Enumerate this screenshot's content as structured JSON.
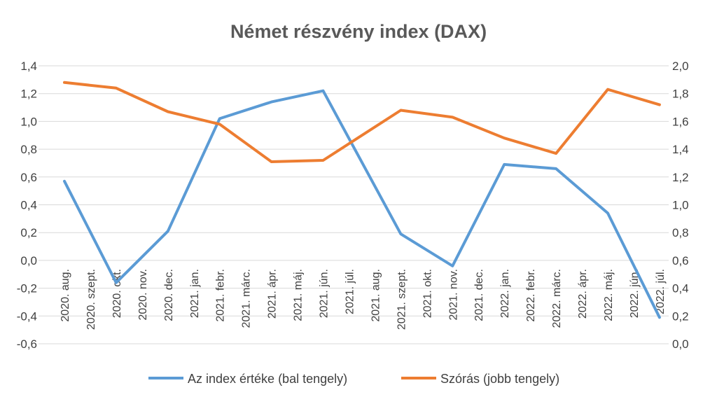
{
  "chart_data": {
    "type": "line",
    "title": "Német részvény index (DAX)",
    "categories": [
      "2020. aug.",
      "2020. szept.",
      "2020. okt.",
      "2020. nov.",
      "2020. dec.",
      "2021. jan.",
      "2021. febr.",
      "2021. márc.",
      "2021. ápr.",
      "2021. máj.",
      "2021. jún.",
      "2021. júl.",
      "2021. aug.",
      "2021. szept.",
      "2021. okt.",
      "2021. nov.",
      "2021. dec.",
      "2022. jan.",
      "2022. febr.",
      "2022. márc.",
      "2022. ápr.",
      "2022. máj.",
      "2022. jún.",
      "2022. júl."
    ],
    "y_left": {
      "min": -0.6,
      "max": 1.4,
      "step": 0.2,
      "ticks": [
        "1,4",
        "1,2",
        "1,0",
        "0,8",
        "0,6",
        "0,4",
        "0,2",
        "0,0",
        "-0,2",
        "-0,4",
        "-0,6"
      ]
    },
    "y_right": {
      "min": 0.0,
      "max": 2.0,
      "step": 0.2,
      "ticks": [
        "2,0",
        "1,8",
        "1,6",
        "1,4",
        "1,2",
        "1,0",
        "0,8",
        "0,6",
        "0,4",
        "0,2",
        "0,0"
      ]
    },
    "series": [
      {
        "name": "Az index értéke (bal tengely)",
        "axis": "left",
        "color": "#5b9bd5",
        "points": [
          {
            "category": "2020. aug.",
            "value": 0.57
          },
          {
            "category": "2020. okt.",
            "value": -0.16
          },
          {
            "category": "2020. dec.",
            "value": 0.21
          },
          {
            "category": "2021. febr.",
            "value": 1.02
          },
          {
            "category": "2021. ápr.",
            "value": 1.14
          },
          {
            "category": "2021. jún.",
            "value": 1.22
          },
          {
            "category": "2021. szept.",
            "value": 0.19
          },
          {
            "category": "2021. nov.",
            "value": -0.04
          },
          {
            "category": "2022. jan.",
            "value": 0.69
          },
          {
            "category": "2022. márc.",
            "value": 0.66
          },
          {
            "category": "2022. máj.",
            "value": 0.34
          },
          {
            "category": "2022. júl.",
            "value": -0.41
          }
        ]
      },
      {
        "name": "Szórás (jobb tengely)",
        "axis": "right",
        "color": "#ed7d31",
        "points": [
          {
            "category": "2020. aug.",
            "value": 1.88
          },
          {
            "category": "2020. okt.",
            "value": 1.84
          },
          {
            "category": "2020. dec.",
            "value": 1.67
          },
          {
            "category": "2021. febr.",
            "value": 1.58
          },
          {
            "category": "2021. ápr.",
            "value": 1.31
          },
          {
            "category": "2021. jún.",
            "value": 1.32
          },
          {
            "category": "2021. szept.",
            "value": 1.68
          },
          {
            "category": "2021. nov.",
            "value": 1.63
          },
          {
            "category": "2022. jan.",
            "value": 1.48
          },
          {
            "category": "2022. márc.",
            "value": 1.37
          },
          {
            "category": "2022. máj.",
            "value": 1.83
          },
          {
            "category": "2022. júl.",
            "value": 1.72
          }
        ]
      }
    ],
    "grid": true,
    "legend": "bottom"
  }
}
